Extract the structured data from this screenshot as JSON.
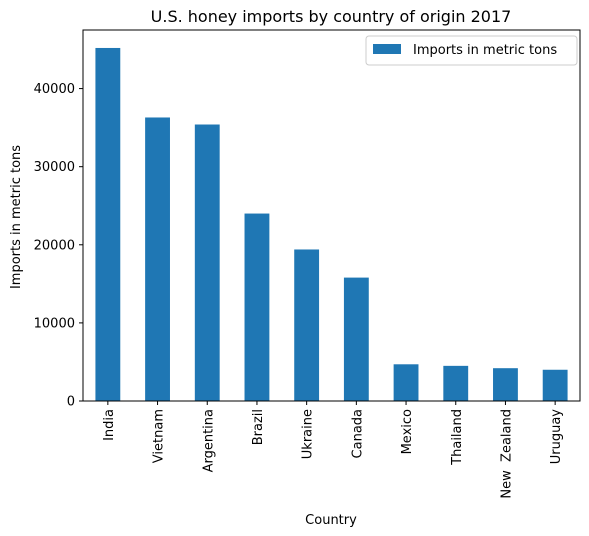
{
  "chart_data": {
    "type": "bar",
    "title": "U.S. honey imports by country of origin 2017",
    "xlabel": "Country",
    "ylabel": "Imports in metric tons",
    "categories": [
      "India",
      "Vietnam",
      "Argentina",
      "Brazil",
      "Ukraine",
      "Canada",
      "Mexico",
      "Thailand",
      "New  Zealand",
      "Uruguay"
    ],
    "series": [
      {
        "name": "Imports in metric tons",
        "values": [
          45200,
          36300,
          35400,
          24000,
          19400,
          15800,
          4700,
          4500,
          4200,
          4000
        ],
        "color": "#1f77b4"
      }
    ],
    "ylim": [
      0,
      47500
    ],
    "yticks": [
      0,
      10000,
      20000,
      30000,
      40000
    ],
    "ytick_labels": [
      "0",
      "10000",
      "20000",
      "30000",
      "40000"
    ],
    "grid": false,
    "legend_position": "top-right"
  }
}
